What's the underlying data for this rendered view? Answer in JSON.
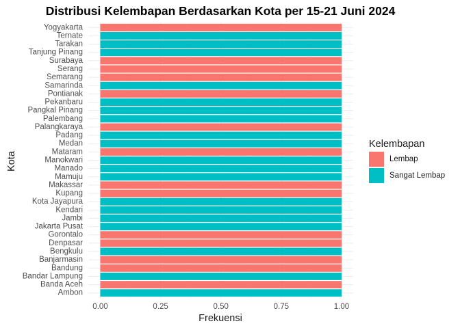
{
  "chart_data": {
    "type": "bar",
    "orientation": "horizontal",
    "title": "Distribusi Kelembapan Berdasarkan Kota per 15-21 Juni 2024",
    "xlabel": "Frekuensi",
    "ylabel": "Kota",
    "xlim": [
      0,
      1
    ],
    "x_ticks": [
      "0.00",
      "0.25",
      "0.50",
      "0.75",
      "1.00"
    ],
    "grid": true,
    "legend": {
      "title": "Kelembapan",
      "position": "right",
      "entries": [
        {
          "name": "Lembap",
          "color": "#F8766D"
        },
        {
          "name": "Sangat Lembap",
          "color": "#00BFC4"
        }
      ]
    },
    "categories": [
      "Ambon",
      "Banda Aceh",
      "Bandar Lampung",
      "Bandung",
      "Banjarmasin",
      "Bengkulu",
      "Denpasar",
      "Gorontalo",
      "Jakarta Pusat",
      "Jambi",
      "Kendari",
      "Kota Jayapura",
      "Kupang",
      "Makassar",
      "Mamuju",
      "Manado",
      "Manokwari",
      "Mataram",
      "Medan",
      "Padang",
      "Palangkaraya",
      "Palembang",
      "Pangkal Pinang",
      "Pekanbaru",
      "Pontianak",
      "Samarinda",
      "Semarang",
      "Serang",
      "Surabaya",
      "Tanjung Pinang",
      "Tarakan",
      "Ternate",
      "Yogyakarta"
    ],
    "values": [
      1,
      1,
      1,
      1,
      1,
      1,
      1,
      1,
      1,
      1,
      1,
      1,
      1,
      1,
      1,
      1,
      1,
      1,
      1,
      1,
      1,
      1,
      1,
      1,
      1,
      1,
      1,
      1,
      1,
      1,
      1,
      1,
      1
    ],
    "groups": [
      "Sangat Lembap",
      "Lembap",
      "Sangat Lembap",
      "Lembap",
      "Lembap",
      "Sangat Lembap",
      "Lembap",
      "Lembap",
      "Sangat Lembap",
      "Sangat Lembap",
      "Sangat Lembap",
      "Sangat Lembap",
      "Lembap",
      "Lembap",
      "Sangat Lembap",
      "Sangat Lembap",
      "Sangat Lembap",
      "Lembap",
      "Sangat Lembap",
      "Sangat Lembap",
      "Lembap",
      "Sangat Lembap",
      "Sangat Lembap",
      "Sangat Lembap",
      "Lembap",
      "Sangat Lembap",
      "Lembap",
      "Lembap",
      "Lembap",
      "Sangat Lembap",
      "Sangat Lembap",
      "Sangat Lembap",
      "Lembap"
    ]
  }
}
